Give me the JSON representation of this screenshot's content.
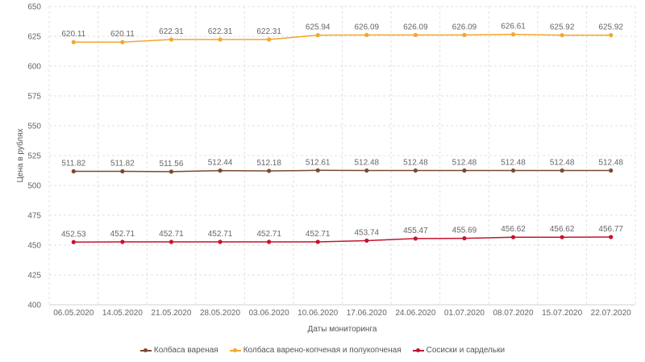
{
  "chart_data": {
    "type": "line",
    "title": "",
    "xlabel": "Даты мониторинга",
    "ylabel": "Цена в рублях",
    "ylim": [
      400,
      650
    ],
    "y_ticks": [
      400,
      425,
      450,
      475,
      500,
      525,
      550,
      575,
      600,
      625,
      650
    ],
    "categories": [
      "06.05.2020",
      "14.05.2020",
      "21.05.2020",
      "28.05.2020",
      "03.06.2020",
      "10.06.2020",
      "17.06.2020",
      "24.06.2020",
      "01.07.2020",
      "08.07.2020",
      "15.07.2020",
      "22.07.2020"
    ],
    "grid": true,
    "legend_position": "bottom",
    "series": [
      {
        "name": "Колбаса вареная",
        "color": "#7b4a2f",
        "values": [
          511.82,
          511.82,
          511.56,
          512.44,
          512.18,
          512.61,
          512.48,
          512.48,
          512.48,
          512.48,
          512.48,
          512.48
        ],
        "labels": [
          "511.82",
          "511.82",
          "511.56",
          "512.44",
          "512.18",
          "512.61",
          "512.48",
          "512.48",
          "512.48",
          "512.48",
          "512.48",
          "512.48"
        ]
      },
      {
        "name": "Колбаса варено-копченая и полукопченая",
        "color": "#f2a72e",
        "values": [
          620.11,
          620.11,
          622.31,
          622.31,
          622.31,
          625.94,
          626.09,
          626.09,
          626.09,
          626.61,
          625.92,
          625.92
        ],
        "labels": [
          "620.11",
          "620.11",
          "622.31",
          "622.31",
          "622.31",
          "625.94",
          "626.09",
          "626.09",
          "626.09",
          "626.61",
          "625.92",
          "625.92"
        ]
      },
      {
        "name": "Сосиски и сардельки",
        "color": "#c4142e",
        "values": [
          452.53,
          452.71,
          452.71,
          452.71,
          452.71,
          452.71,
          453.74,
          455.47,
          455.69,
          456.62,
          456.62,
          456.77
        ],
        "labels": [
          "452.53",
          "452.71",
          "452.71",
          "452.71",
          "452.71",
          "452.71",
          "453.74",
          "455.47",
          "455.69",
          "456.62",
          "456.62",
          "456.77"
        ]
      }
    ]
  }
}
